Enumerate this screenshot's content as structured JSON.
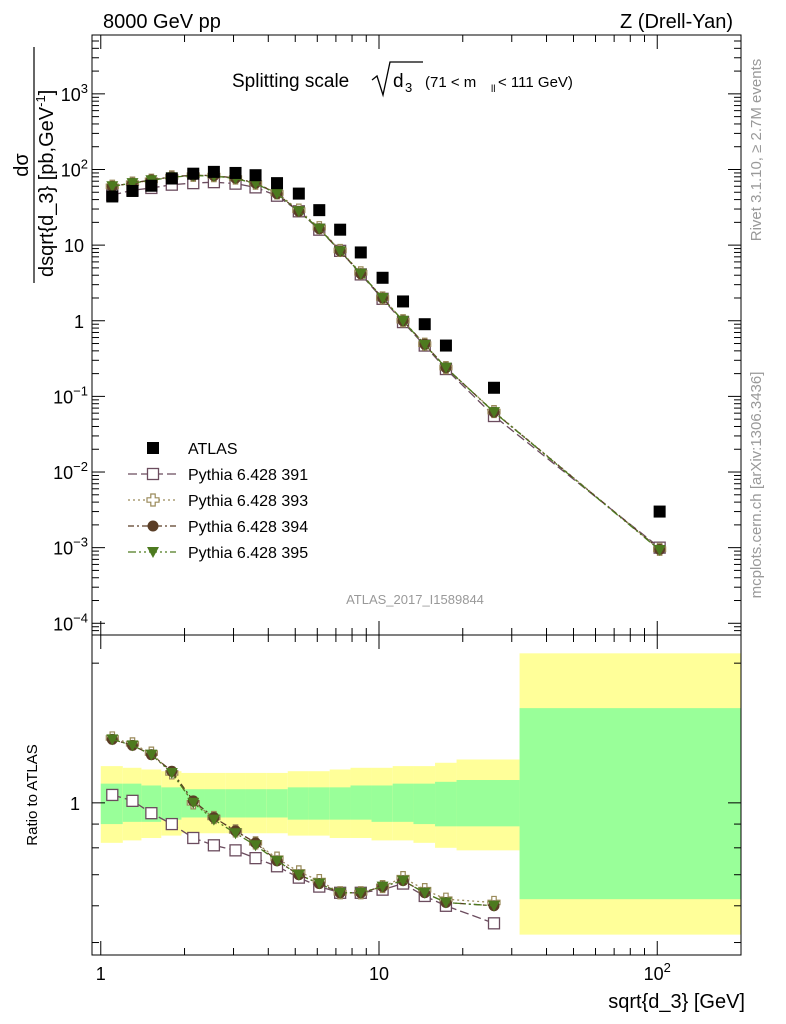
{
  "header": {
    "left": "8000 GeV pp",
    "right": "Z (Drell-Yan)",
    "watermark": "ATLAS_2017_I1589844",
    "side_top": "Rivet 3.1.10, ≥ 2.7M events",
    "side_bottom": "mcplots.cern.ch [arXiv:1306.3436]"
  },
  "chart_data": [
    {
      "type": "scatter",
      "title": "Splitting scale √d3 (71 < m_ll < 111 GeV)",
      "title_main": "Splitting scale",
      "title_sym": "d",
      "title_sub": "3",
      "title_cut": "(71 < m",
      "title_cut_sub": "ll",
      "title_cut_end": " < 111 GeV)",
      "ylabel": "dσ / dsqrt{d_3} [pb,GeV⁻¹]",
      "ylabel_num": "dσ",
      "ylabel_den": "dsqrt{d_3} [pb,GeV",
      "ylabel_exp": "-1",
      "ylabel_end": "]",
      "xscale": "log",
      "yscale": "log",
      "xlim": [
        0.93,
        200
      ],
      "ylim": [
        7e-05,
        6000
      ],
      "legend_position": "lower-left",
      "yticks": [
        {
          "v": 0.0001,
          "base": "10",
          "exp": "−4"
        },
        {
          "v": 0.001,
          "base": "10",
          "exp": "−3"
        },
        {
          "v": 0.01,
          "base": "10",
          "exp": "−2"
        },
        {
          "v": 0.1,
          "base": "10",
          "exp": "−1"
        },
        {
          "v": 1,
          "base": "1",
          "exp": ""
        },
        {
          "v": 10,
          "base": "10",
          "exp": ""
        },
        {
          "v": 100,
          "base": "10",
          "exp": "2"
        },
        {
          "v": 1000,
          "base": "10",
          "exp": "3"
        }
      ],
      "x": [
        1.1,
        1.3,
        1.52,
        1.8,
        2.15,
        2.55,
        3.05,
        3.6,
        4.3,
        5.15,
        6.1,
        7.25,
        8.6,
        10.3,
        12.2,
        14.6,
        17.4,
        25.9,
        102
      ],
      "series": [
        {
          "name": "ATLAS",
          "color": "#000000",
          "marker": "square-filled",
          "values": [
            44,
            52,
            61,
            76,
            88,
            93,
            90,
            84,
            66,
            48,
            29,
            16,
            8,
            3.7,
            1.8,
            0.9,
            0.47,
            0.13,
            0.003
          ]
        },
        {
          "name": "Pythia 6.428 391",
          "color": "#6b4c5e",
          "marker": "square-open",
          "values": [
            46,
            53,
            57,
            63,
            66,
            68,
            65,
            58,
            45,
            28,
            16,
            8.4,
            4.1,
            1.95,
            0.96,
            0.47,
            0.23,
            0.055,
            0.001
          ]
        },
        {
          "name": "Pythia 6.428 393",
          "color": "#9a8a5a",
          "marker": "cross-open",
          "values": [
            60,
            66,
            72,
            80,
            84,
            83,
            77,
            66,
            49,
            29,
            17,
            8.5,
            4.3,
            2.0,
            1.0,
            0.49,
            0.24,
            0.063,
            0.00095
          ]
        },
        {
          "name": "Pythia 6.428 394",
          "color": "#5a3e26",
          "marker": "circle-filled",
          "values": [
            60,
            66,
            73,
            80,
            84,
            83,
            77,
            66,
            48,
            28,
            16.5,
            8.4,
            4.2,
            2.0,
            1.0,
            0.49,
            0.24,
            0.062,
            0.00095
          ]
        },
        {
          "name": "Pythia 6.428 395",
          "color": "#4d7a1f",
          "marker": "triangle-down-filled",
          "values": [
            60,
            66,
            72,
            79,
            83,
            82,
            76,
            65,
            48,
            28,
            16.5,
            8.3,
            4.2,
            2.0,
            1.0,
            0.48,
            0.24,
            0.062,
            0.00093
          ]
        }
      ]
    },
    {
      "type": "line",
      "ylabel": "Ratio to ATLAS",
      "xlabel": "sqrt{d_3} [GeV]",
      "xscale": "log",
      "yscale": "log",
      "xlim": [
        0.93,
        200
      ],
      "ylim": [
        0.47,
        2.3
      ],
      "xticks": [
        {
          "v": 1,
          "base": "1",
          "exp": ""
        },
        {
          "v": 10,
          "base": "10",
          "exp": ""
        },
        {
          "v": 100,
          "base": "10",
          "exp": "2"
        }
      ],
      "yticks": [
        {
          "v": 1,
          "label": "1"
        }
      ],
      "bands": [
        {
          "x0": 1.0,
          "x1": 1.2,
          "yellow": [
            0.82,
            1.2
          ],
          "green": [
            0.9,
            1.1
          ]
        },
        {
          "x0": 1.2,
          "x1": 1.4,
          "yellow": [
            0.83,
            1.19
          ],
          "green": [
            0.91,
            1.1
          ]
        },
        {
          "x0": 1.4,
          "x1": 1.65,
          "yellow": [
            0.84,
            1.18
          ],
          "green": [
            0.91,
            1.09
          ]
        },
        {
          "x0": 1.65,
          "x1": 1.95,
          "yellow": [
            0.85,
            1.17
          ],
          "green": [
            0.92,
            1.08
          ]
        },
        {
          "x0": 1.95,
          "x1": 2.35,
          "yellow": [
            0.86,
            1.16
          ],
          "green": [
            0.93,
            1.07
          ]
        },
        {
          "x0": 2.35,
          "x1": 2.8,
          "yellow": [
            0.86,
            1.16
          ],
          "green": [
            0.93,
            1.07
          ]
        },
        {
          "x0": 2.8,
          "x1": 3.3,
          "yellow": [
            0.86,
            1.16
          ],
          "green": [
            0.93,
            1.07
          ]
        },
        {
          "x0": 3.3,
          "x1": 3.95,
          "yellow": [
            0.86,
            1.16
          ],
          "green": [
            0.93,
            1.07
          ]
        },
        {
          "x0": 3.95,
          "x1": 4.7,
          "yellow": [
            0.86,
            1.16
          ],
          "green": [
            0.93,
            1.07
          ]
        },
        {
          "x0": 4.7,
          "x1": 5.6,
          "yellow": [
            0.85,
            1.17
          ],
          "green": [
            0.92,
            1.08
          ]
        },
        {
          "x0": 5.6,
          "x1": 6.65,
          "yellow": [
            0.85,
            1.17
          ],
          "green": [
            0.92,
            1.08
          ]
        },
        {
          "x0": 6.65,
          "x1": 7.9,
          "yellow": [
            0.84,
            1.18
          ],
          "green": [
            0.92,
            1.08
          ]
        },
        {
          "x0": 7.9,
          "x1": 9.4,
          "yellow": [
            0.84,
            1.19
          ],
          "green": [
            0.92,
            1.09
          ]
        },
        {
          "x0": 9.4,
          "x1": 11.2,
          "yellow": [
            0.83,
            1.19
          ],
          "green": [
            0.91,
            1.09
          ]
        },
        {
          "x0": 11.2,
          "x1": 13.3,
          "yellow": [
            0.83,
            1.2
          ],
          "green": [
            0.91,
            1.1
          ]
        },
        {
          "x0": 13.3,
          "x1": 15.9,
          "yellow": [
            0.82,
            1.2
          ],
          "green": [
            0.9,
            1.1
          ]
        },
        {
          "x0": 15.9,
          "x1": 19,
          "yellow": [
            0.8,
            1.22
          ],
          "green": [
            0.89,
            1.11
          ]
        },
        {
          "x0": 19,
          "x1": 32,
          "yellow": [
            0.79,
            1.24
          ],
          "green": [
            0.89,
            1.12
          ]
        },
        {
          "x0": 32,
          "x1": 200,
          "yellow": [
            0.52,
            2.1
          ],
          "green": [
            0.62,
            1.6
          ]
        }
      ],
      "x": [
        1.1,
        1.3,
        1.52,
        1.8,
        2.15,
        2.55,
        3.05,
        3.6,
        4.3,
        5.15,
        6.1,
        7.25,
        8.6,
        10.3,
        12.2,
        14.6,
        17.4,
        25.9
      ],
      "series": [
        {
          "name": "Pythia 6.428 391",
          "color": "#6b4c5e",
          "marker": "square-open",
          "values": [
            1.04,
            1.01,
            0.95,
            0.9,
            0.84,
            0.81,
            0.79,
            0.76,
            0.73,
            0.69,
            0.66,
            0.64,
            0.64,
            0.65,
            0.67,
            0.63,
            0.6,
            0.55
          ]
        },
        {
          "name": "Pythia 6.428 393",
          "color": "#9a8a5a",
          "marker": "cross-open",
          "values": [
            1.38,
            1.34,
            1.28,
            1.16,
            1.0,
            0.93,
            0.87,
            0.82,
            0.76,
            0.71,
            0.68,
            0.64,
            0.64,
            0.66,
            0.69,
            0.65,
            0.62,
            0.61
          ]
        },
        {
          "name": "Pythia 6.428 394",
          "color": "#5a3e26",
          "marker": "circle-filled",
          "values": [
            1.37,
            1.33,
            1.27,
            1.17,
            1.01,
            0.93,
            0.87,
            0.82,
            0.75,
            0.7,
            0.67,
            0.64,
            0.64,
            0.66,
            0.68,
            0.64,
            0.61,
            0.6
          ]
        },
        {
          "name": "Pythia 6.428 395",
          "color": "#4d7a1f",
          "marker": "triangle-down-filled",
          "values": [
            1.37,
            1.33,
            1.27,
            1.16,
            1.0,
            0.92,
            0.86,
            0.81,
            0.75,
            0.7,
            0.67,
            0.64,
            0.64,
            0.66,
            0.68,
            0.64,
            0.61,
            0.6
          ]
        }
      ]
    }
  ]
}
